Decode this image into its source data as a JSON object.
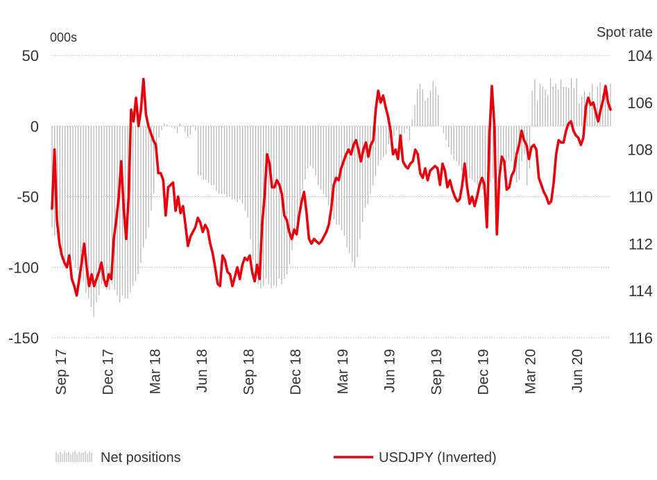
{
  "chart_data": {
    "type": "bar+line",
    "left_axis_label": "000s",
    "right_axis_label": "Spot rate",
    "left_ticks": [
      "50",
      "0",
      "-50",
      "-100",
      "-150"
    ],
    "right_ticks": [
      "104",
      "106",
      "108",
      "110",
      "112",
      "114",
      "116"
    ],
    "x_ticks": [
      "Sep 17",
      "Dec 17",
      "Mar 18",
      "Jun 18",
      "Sep 18",
      "Dec 18",
      "Mar 19",
      "Jun 19",
      "Sep 19",
      "Dec 19",
      "Mar 20",
      "Jun 20"
    ],
    "left_range": [
      -150,
      50
    ],
    "right_range": [
      104,
      116
    ],
    "right_inverted": true,
    "grid": true,
    "legend": [
      {
        "label": "Net positions",
        "type": "bar",
        "color": "#bbbbbb"
      },
      {
        "label": "USDJPY (Inverted)",
        "type": "line",
        "color": "#e8000b"
      }
    ],
    "net_positions": {
      "name": "Net positions",
      "values": [
        -72,
        -78,
        -70,
        -88,
        -88,
        -95,
        -98,
        -92,
        -95,
        -100,
        -102,
        -108,
        -110,
        -118,
        -122,
        -128,
        -135,
        -125,
        -120,
        -112,
        -114,
        -116,
        -116,
        -112,
        -116,
        -120,
        -125,
        -120,
        -122,
        -122,
        -118,
        -113,
        -110,
        -105,
        -97,
        -86,
        -80,
        -72,
        -60,
        -48,
        -22,
        -8,
        -3,
        2,
        1,
        0,
        -1,
        -2,
        -5,
        2,
        0,
        -4,
        -8,
        -6,
        1,
        -3,
        -35,
        -35,
        -38,
        -38,
        -40,
        -42,
        -42,
        -46,
        -48,
        -48,
        -48,
        -50,
        -50,
        -52,
        -52,
        -54,
        -52,
        -55,
        -60,
        -65,
        -80,
        -95,
        -108,
        -112,
        -115,
        -113,
        -108,
        -112,
        -115,
        -113,
        -114,
        -108,
        -112,
        -108,
        -105,
        -98,
        -88,
        -75,
        -68,
        -55,
        -45,
        -38,
        -30,
        -28,
        -30,
        -35,
        -42,
        -45,
        -48,
        -50,
        -56,
        -60,
        -66,
        -70,
        -70,
        -74,
        -78,
        -86,
        -90,
        -96,
        -100,
        -93,
        -80,
        -68,
        -58,
        -55,
        -48,
        -42,
        -35,
        -28,
        -24,
        -22,
        -20,
        -13,
        -14,
        -7,
        -3,
        -12,
        -8,
        -5,
        -2,
        -10,
        5,
        15,
        26,
        30,
        26,
        18,
        20,
        25,
        32,
        28,
        22,
        0,
        -5,
        -10,
        -15,
        -20,
        -24,
        -25,
        -28,
        -32,
        -33,
        -35,
        -37,
        -38,
        -40,
        -42,
        -44,
        -45,
        -45,
        -42,
        -40,
        -37,
        -35,
        -32,
        -30,
        -28,
        -26,
        -24,
        -25,
        -35,
        -40,
        -38,
        -25,
        -20,
        -42,
        -30,
        25,
        33,
        18,
        30,
        28,
        26,
        22,
        34,
        28,
        30,
        26,
        33,
        28,
        28,
        27,
        34,
        27,
        34,
        16,
        21,
        25,
        18,
        24,
        30,
        16,
        28,
        31,
        22,
        29,
        24,
        30
      ]
    },
    "usdjpy": {
      "name": "USDJPY (Inverted)",
      "values": [
        110.5,
        108,
        111,
        112,
        112.5,
        112.8,
        113,
        112.5,
        113.5,
        113.8,
        114.2,
        113.5,
        112.8,
        112,
        113,
        113.8,
        113.3,
        113.8,
        113.5,
        113.2,
        112.8,
        113.5,
        113.8,
        113.3,
        113.5,
        111.8,
        111,
        110,
        108.5,
        110.5,
        111.8,
        110,
        106.3,
        106.8,
        105.8,
        107,
        106.3,
        105,
        106.5,
        107,
        107.3,
        107.6,
        107.8,
        109,
        109,
        109.3,
        110.8,
        109.6,
        109.5,
        109.4,
        110.6,
        110,
        110.7,
        110.4,
        111.2,
        112.1,
        111.7,
        111.5,
        111.3,
        110.9,
        111.1,
        111.5,
        111.2,
        111.4,
        112,
        112.4,
        113,
        113.7,
        113.8,
        112.5,
        112.7,
        113.2,
        113.3,
        113.8,
        113.4,
        113,
        113.5,
        112.9,
        112.6,
        112.7,
        112.5,
        113.2,
        113.6,
        112.9,
        113.5,
        111.2,
        110,
        108.2,
        108.6,
        109.6,
        109.6,
        109.3,
        109.5,
        109.9,
        110.8,
        111,
        111.5,
        111.8,
        111.4,
        111.6,
        110.8,
        110.2,
        109.8,
        110.7,
        111.8,
        112,
        111.8,
        111.9,
        112,
        111.9,
        111.7,
        111.5,
        111.2,
        110.5,
        109.5,
        109.2,
        109.3,
        108.8,
        108.5,
        108.2,
        108,
        108.2,
        107.8,
        107.6,
        108,
        108.5,
        108,
        107.7,
        108.3,
        107.8,
        107.6,
        106.3,
        105.5,
        106,
        105.7,
        106.2,
        106.6,
        107.2,
        108.2,
        108,
        108.4,
        107.4,
        108.5,
        108.7,
        108.8,
        108.6,
        108.5,
        108,
        108.2,
        109,
        109.2,
        108.8,
        109.3,
        108.9,
        108.8,
        108.7,
        108.8,
        109.5,
        108.6,
        108.9,
        109.6,
        109.3,
        109.7,
        110,
        110.2,
        110.1,
        109.5,
        108.6,
        109.6,
        110.3,
        110,
        110.4,
        110,
        109.5,
        109.2,
        109.5,
        111.3,
        107.4,
        105.3,
        107,
        111.6,
        109.2,
        108.3,
        108.5,
        109.7,
        109.6,
        109.1,
        108.9,
        108.2,
        107.8,
        107.2,
        107.6,
        107.8,
        108.4,
        107.9,
        107.8,
        108,
        109.2,
        109.5,
        109.8,
        110,
        110.3,
        110.2,
        109.4,
        108.2,
        107.6,
        107.7,
        107.7,
        107.2,
        106.9,
        106.8,
        107.2,
        107.4,
        107.5,
        107.8,
        107.5,
        106.2,
        105.8,
        106.1,
        106,
        106.4,
        106.8,
        106.3,
        105.9,
        105.3,
        106,
        106.3
      ]
    }
  }
}
